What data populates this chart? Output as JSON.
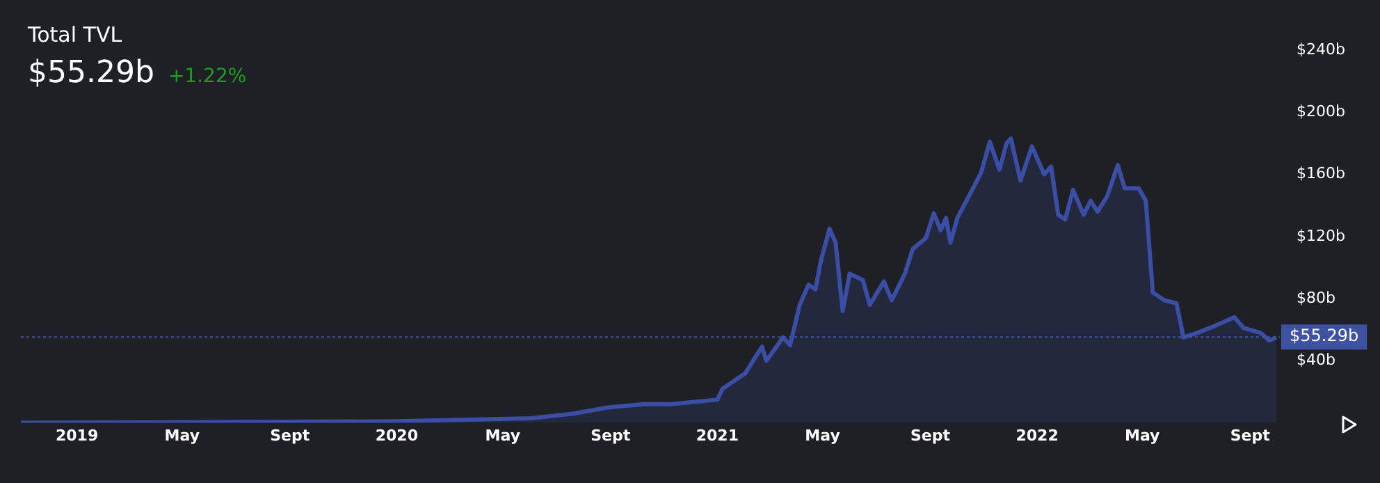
{
  "chart_data": {
    "type": "area",
    "title": "Total TVL",
    "subtitle": "$55.29b",
    "annotations": [
      "+1.22%"
    ],
    "x": [
      "2018-10-29",
      "2020-01-01",
      "2020-06-03",
      "2020-07-21",
      "2020-08-30",
      "2020-10-09",
      "2020-11-09",
      "2021-01-01",
      "2021-01-07",
      "2021-02-02",
      "2021-02-13",
      "2021-02-21",
      "2021-02-26",
      "2021-03-17",
      "2021-03-25",
      "2021-04-05",
      "2021-04-15",
      "2021-04-23",
      "2021-04-29",
      "2021-05-09",
      "2021-05-16",
      "2021-05-24",
      "2021-06-01",
      "2021-06-16",
      "2021-06-24",
      "2021-07-10",
      "2021-07-19",
      "2021-08-03",
      "2021-08-12",
      "2021-08-27",
      "2021-09-05",
      "2021-09-13",
      "2021-09-19",
      "2021-09-24",
      "2021-10-02",
      "2021-10-15",
      "2021-10-29",
      "2021-11-08",
      "2021-11-19",
      "2021-11-27",
      "2021-12-02",
      "2021-12-13",
      "2021-12-26",
      "2022-01-09",
      "2022-01-17",
      "2022-01-25",
      "2022-02-02",
      "2022-02-11",
      "2022-02-23",
      "2022-03-03",
      "2022-03-11",
      "2022-03-22",
      "2022-04-03",
      "2022-04-11",
      "2022-04-27",
      "2022-05-05",
      "2022-05-13",
      "2022-05-26",
      "2022-06-09",
      "2022-06-17",
      "2022-07-03",
      "2022-07-21",
      "2022-08-14",
      "2022-08-25",
      "2022-09-13",
      "2022-09-23",
      "2022-10-01"
    ],
    "series": [
      {
        "color": "#3b4ea6",
        "values": [
          0,
          1,
          3,
          6,
          10,
          12,
          12,
          15,
          22,
          32,
          42,
          49,
          40,
          55,
          50,
          76,
          89,
          86,
          104,
          125,
          116,
          72,
          96,
          92,
          76,
          91,
          79,
          96,
          112,
          119,
          135,
          124,
          132,
          116,
          132,
          146,
          161,
          181,
          163,
          180,
          183,
          156,
          178,
          160,
          165,
          134,
          131,
          150,
          134,
          143,
          136,
          146,
          166,
          151,
          151,
          143,
          84,
          79,
          77,
          55,
          58,
          62,
          68,
          61,
          58,
          53,
          55
        ]
      }
    ],
    "xlim": [
      "2018-10-29",
      "2022-10-05"
    ],
    "ylim": [
      0,
      240
    ],
    "xticks": [
      {
        "value": "2019-01-01",
        "label": "2019"
      },
      {
        "value": "2019-05-01",
        "label": "May"
      },
      {
        "value": "2019-09-01",
        "label": "Sept"
      },
      {
        "value": "2020-01-01",
        "label": "2020"
      },
      {
        "value": "2020-05-01",
        "label": "May"
      },
      {
        "value": "2020-09-01",
        "label": "Sept"
      },
      {
        "value": "2021-01-01",
        "label": "2021"
      },
      {
        "value": "2021-05-01",
        "label": "May"
      },
      {
        "value": "2021-09-01",
        "label": "Sept"
      },
      {
        "value": "2022-01-01",
        "label": "2022"
      },
      {
        "value": "2022-05-01",
        "label": "May"
      },
      {
        "value": "2022-09-01",
        "label": "Sept"
      }
    ],
    "yticks": [
      {
        "value": 40,
        "label": "$40b"
      },
      {
        "value": 80,
        "label": "$80b"
      },
      {
        "value": 120,
        "label": "$120b"
      },
      {
        "value": 160,
        "label": "$160b"
      },
      {
        "value": 200,
        "label": "$200b"
      },
      {
        "value": 240,
        "label": "$240b"
      }
    ],
    "ref_lines": [
      {
        "axis": "y",
        "value": 55.29,
        "label": "$55.29b",
        "color": "#3f51a3",
        "line_style": "dashed"
      }
    ],
    "grid": false,
    "legend": false
  }
}
